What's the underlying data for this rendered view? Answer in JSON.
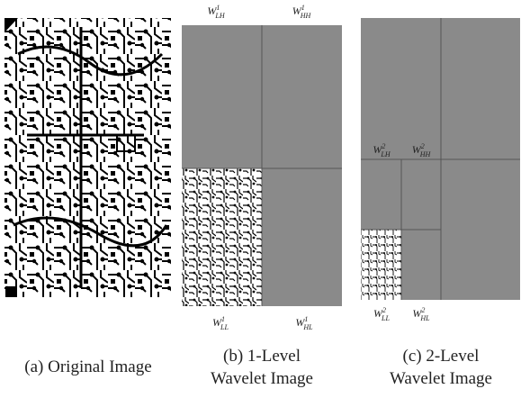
{
  "panels": [
    {
      "caption": [
        "(a) Original Image"
      ]
    },
    {
      "caption": [
        "(b) 1-Level",
        "Wavelet Image"
      ],
      "labels": [
        {
          "base": "W",
          "sub": "LH",
          "sup": "1"
        },
        {
          "base": "W",
          "sub": "HH",
          "sup": "1"
        },
        {
          "base": "W",
          "sub": "LL",
          "sup": "1"
        },
        {
          "base": "W",
          "sub": "HL",
          "sup": "1"
        }
      ]
    },
    {
      "caption": [
        "(c) 2-Level",
        "Wavelet Image"
      ],
      "labels": [
        {
          "base": "W",
          "sub": "LH",
          "sup": "2"
        },
        {
          "base": "W",
          "sub": "HH",
          "sup": "2"
        },
        {
          "base": "W",
          "sub": "LL",
          "sup": "2"
        },
        {
          "base": "W",
          "sub": "HL",
          "sup": "2"
        }
      ]
    }
  ]
}
